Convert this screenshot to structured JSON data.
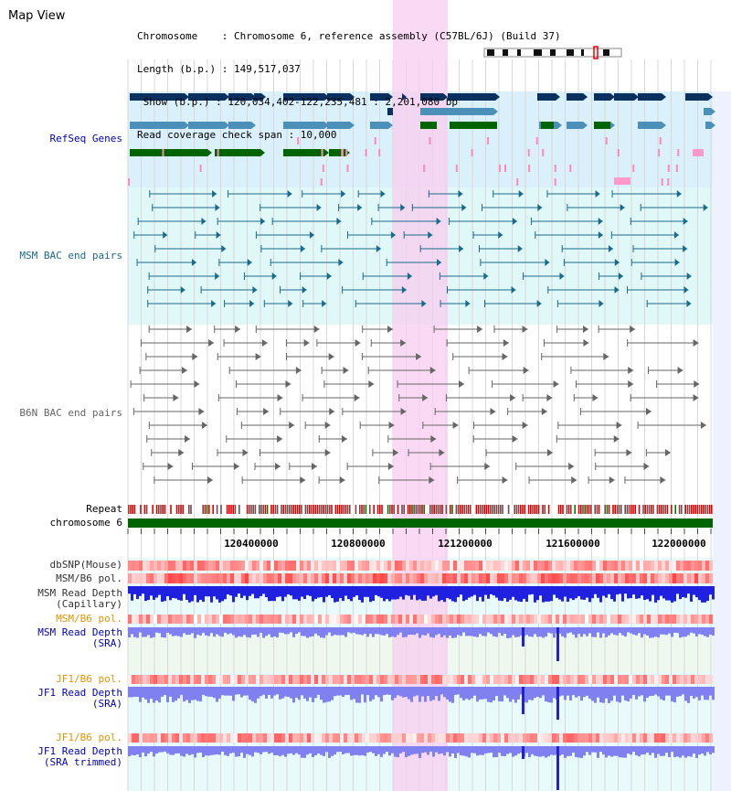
{
  "title": "Map View",
  "info": {
    "chromosome": "Chromosome    : Chromosome 6, reference assembly (C57BL/6J) (Build 37)",
    "length": "Length (b.p.) : 149,517,037",
    "show": " Show (b.p.) : 120,034,402-122,235,481 : 2,201,080 bp",
    "coverage": "Read coverage check span : 10,000"
  },
  "tracks": {
    "refseq": "RefSeq Genes",
    "msm_bac": "MSM BAC end pairs",
    "b6n_bac": "B6N BAC end pairs",
    "repeat": "Repeat",
    "chromosome": "chromosome 6",
    "dbsnp": "dbSNP(Mouse)",
    "msm_b6_pol": "MSM/B6 pol.",
    "msm_depth_cap_1": "MSM Read Depth",
    "msm_depth_cap_2": "(Capillary)",
    "msm_b6_pol_sra": "MSM/B6 pol.",
    "msm_depth_sra_1": "MSM Read Depth",
    "msm_depth_sra_2": "(SRA)",
    "jf1_b6_pol": "JF1/B6 pol.",
    "jf1_depth_1": "JF1 Read Depth",
    "jf1_depth_2": "(SRA)",
    "jf1_b6_pol_t": "JF1/B6 pol.",
    "jf1_depth_t_1": "JF1 Read Depth",
    "jf1_depth_t_2": "(SRA trimmed)"
  },
  "axis": {
    "ticks": [
      "120400000",
      "120800000",
      "121200000",
      "121600000",
      "122000000"
    ]
  },
  "colors": {
    "refseq_dark": "#0a3060",
    "refseq_light": "#4a90b8",
    "refseq_green": "#006400",
    "refseq_bg": "#daf0fa",
    "msm_bac": "#1a6a8a",
    "msm_bg": "#e0f8f8",
    "b6n_bac": "#666666",
    "highlight": "#f8d0f0",
    "chromosome": "#006400",
    "depth_blue": "#2020e0",
    "depth_light": "#8080f0",
    "label_blue": "#0000c0",
    "label_orange": "#e89000",
    "label_teal": "#1a6a8a"
  }
}
